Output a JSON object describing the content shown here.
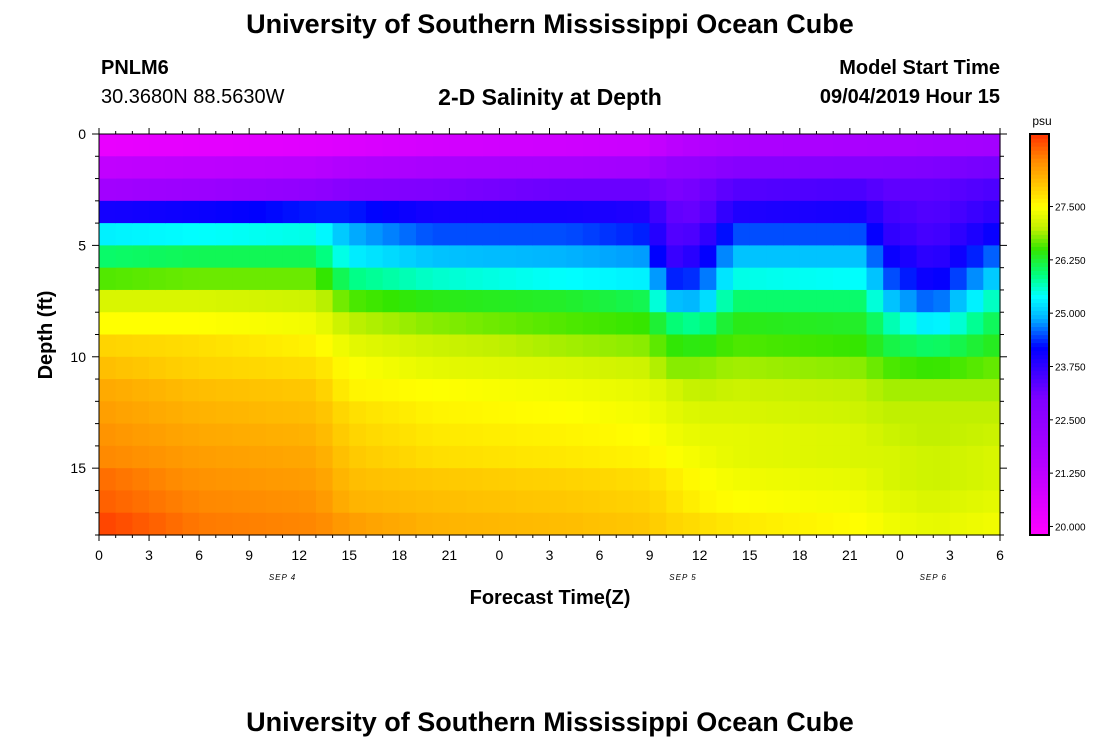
{
  "header": {
    "main_title": "University of Southern Mississippi Ocean Cube",
    "footer_title": "University of Southern Mississippi Ocean Cube",
    "station_id": "PNLM6",
    "station_coords": "30.3680N 88.5630W",
    "chart_title": "2-D Salinity at Depth",
    "model_start_label": "Model Start Time",
    "model_start_value": "09/04/2019 Hour 15"
  },
  "chart_data": {
    "type": "heatmap",
    "title": "2-D Salinity at Depth",
    "xlabel": "Forecast Time(Z)",
    "ylabel": "Depth (ft)",
    "colorbar_unit": "psu",
    "x_hours": [
      0,
      54
    ],
    "x_tick_labels": [
      "0",
      "3",
      "6",
      "9",
      "12",
      "15",
      "18",
      "21",
      "0",
      "3",
      "6",
      "9",
      "12",
      "15",
      "18",
      "21",
      "0",
      "3",
      "6"
    ],
    "date_labels": [
      {
        "hour": 11,
        "label": "SEP 4"
      },
      {
        "hour": 35,
        "label": "SEP 5"
      },
      {
        "hour": 50,
        "label": "SEP 6"
      }
    ],
    "y_ticks": [
      0,
      5,
      10,
      15
    ],
    "ylim": [
      0,
      18
    ],
    "depth_levels": 18,
    "colorbar_range": [
      19.8,
      29.2
    ],
    "colorbar_ticks": [
      "20.000",
      "21.250",
      "22.500",
      "23.750",
      "25.000",
      "26.250",
      "27.500"
    ],
    "colorbar_tick_values": [
      20.0,
      21.25,
      22.5,
      23.75,
      25.0,
      26.25,
      27.5
    ],
    "colormap": [
      "#ff00ff",
      "#b400ff",
      "#7f00ff",
      "#0000ff",
      "#00b4ff",
      "#00ffff",
      "#00ff80",
      "#33e600",
      "#c0f000",
      "#ffff00",
      "#ffc800",
      "#ff8800",
      "#ff3300"
    ],
    "colormap_values": [
      19.8,
      21.5,
      23.0,
      24.2,
      24.9,
      25.4,
      25.9,
      26.5,
      27.0,
      27.5,
      28.0,
      28.6,
      29.2
    ],
    "salinity_profiles": [
      {
        "hour": 0,
        "psu": [
          20.3,
          21.2,
          22.0,
          24.0,
          25.3,
          26.0,
          26.6,
          27.2,
          27.5,
          27.9,
          28.1,
          28.3,
          28.4,
          28.5,
          28.6,
          28.8,
          28.9,
          29.1
        ]
      },
      {
        "hour": 6,
        "psu": [
          20.4,
          21.3,
          22.2,
          24.1,
          25.4,
          26.1,
          26.7,
          27.2,
          27.5,
          27.8,
          27.9,
          28.1,
          28.2,
          28.3,
          28.4,
          28.5,
          28.6,
          28.7
        ]
      },
      {
        "hour": 13,
        "psu": [
          20.5,
          21.4,
          22.5,
          24.3,
          25.5,
          26.1,
          26.7,
          27.1,
          27.4,
          27.6,
          27.8,
          28.0,
          28.1,
          28.2,
          28.3,
          28.4,
          28.5,
          28.6
        ]
      },
      {
        "hour": 15,
        "psu": [
          20.6,
          21.6,
          22.8,
          24.3,
          24.9,
          25.3,
          25.9,
          26.6,
          27.0,
          27.3,
          27.5,
          27.6,
          27.8,
          27.9,
          28.0,
          28.1,
          28.2,
          28.4
        ]
      },
      {
        "hour": 20,
        "psu": [
          20.8,
          21.8,
          23.0,
          24.0,
          24.5,
          25.0,
          25.6,
          26.4,
          26.8,
          27.1,
          27.3,
          27.5,
          27.6,
          27.7,
          27.8,
          28.0,
          28.1,
          28.2
        ]
      },
      {
        "hour": 28,
        "psu": [
          20.9,
          21.9,
          23.2,
          24.0,
          24.5,
          24.9,
          25.4,
          26.3,
          26.6,
          26.9,
          27.2,
          27.4,
          27.5,
          27.6,
          27.7,
          27.9,
          28.0,
          28.1
        ]
      },
      {
        "hour": 33,
        "psu": [
          21.0,
          22.0,
          23.2,
          23.9,
          24.3,
          24.8,
          25.3,
          26.1,
          26.5,
          26.8,
          27.1,
          27.3,
          27.4,
          27.5,
          27.6,
          27.8,
          27.9,
          28.0
        ]
      },
      {
        "hour": 34,
        "psu": [
          21.3,
          22.4,
          23.0,
          23.3,
          23.4,
          23.6,
          24.3,
          25.0,
          26.0,
          26.5,
          26.8,
          27.2,
          27.3,
          27.4,
          27.5,
          27.7,
          27.8,
          27.9
        ]
      },
      {
        "hour": 36,
        "psu": [
          21.5,
          22.5,
          23.1,
          23.2,
          23.5,
          23.9,
          24.4,
          24.9,
          25.8,
          26.4,
          26.8,
          27.0,
          27.2,
          27.3,
          27.4,
          27.5,
          27.6,
          27.8
        ]
      },
      {
        "hour": 38,
        "psu": [
          21.7,
          22.8,
          23.4,
          23.9,
          24.5,
          25.0,
          25.5,
          26.0,
          26.4,
          26.6,
          26.9,
          27.1,
          27.2,
          27.3,
          27.3,
          27.4,
          27.5,
          27.7
        ]
      },
      {
        "hour": 46,
        "psu": [
          21.8,
          22.9,
          23.5,
          24.0,
          24.5,
          25.0,
          25.4,
          26.0,
          26.3,
          26.5,
          26.8,
          27.0,
          27.1,
          27.2,
          27.2,
          27.3,
          27.4,
          27.5
        ]
      },
      {
        "hour": 47,
        "psu": [
          21.8,
          22.9,
          23.3,
          23.6,
          23.8,
          24.2,
          24.6,
          25.1,
          25.8,
          26.2,
          26.6,
          26.9,
          27.0,
          27.1,
          27.2,
          27.2,
          27.3,
          27.4
        ]
      },
      {
        "hour": 50,
        "psu": [
          21.9,
          23.0,
          23.3,
          23.4,
          23.5,
          23.7,
          24.0,
          24.5,
          25.2,
          26.0,
          26.5,
          26.9,
          27.0,
          27.0,
          27.1,
          27.1,
          27.2,
          27.3
        ]
      },
      {
        "hour": 54,
        "psu": [
          22.0,
          23.1,
          23.5,
          23.8,
          24.2,
          24.7,
          25.2,
          25.8,
          26.2,
          26.4,
          26.7,
          26.9,
          27.0,
          27.1,
          27.2,
          27.2,
          27.3,
          27.4
        ]
      }
    ]
  }
}
